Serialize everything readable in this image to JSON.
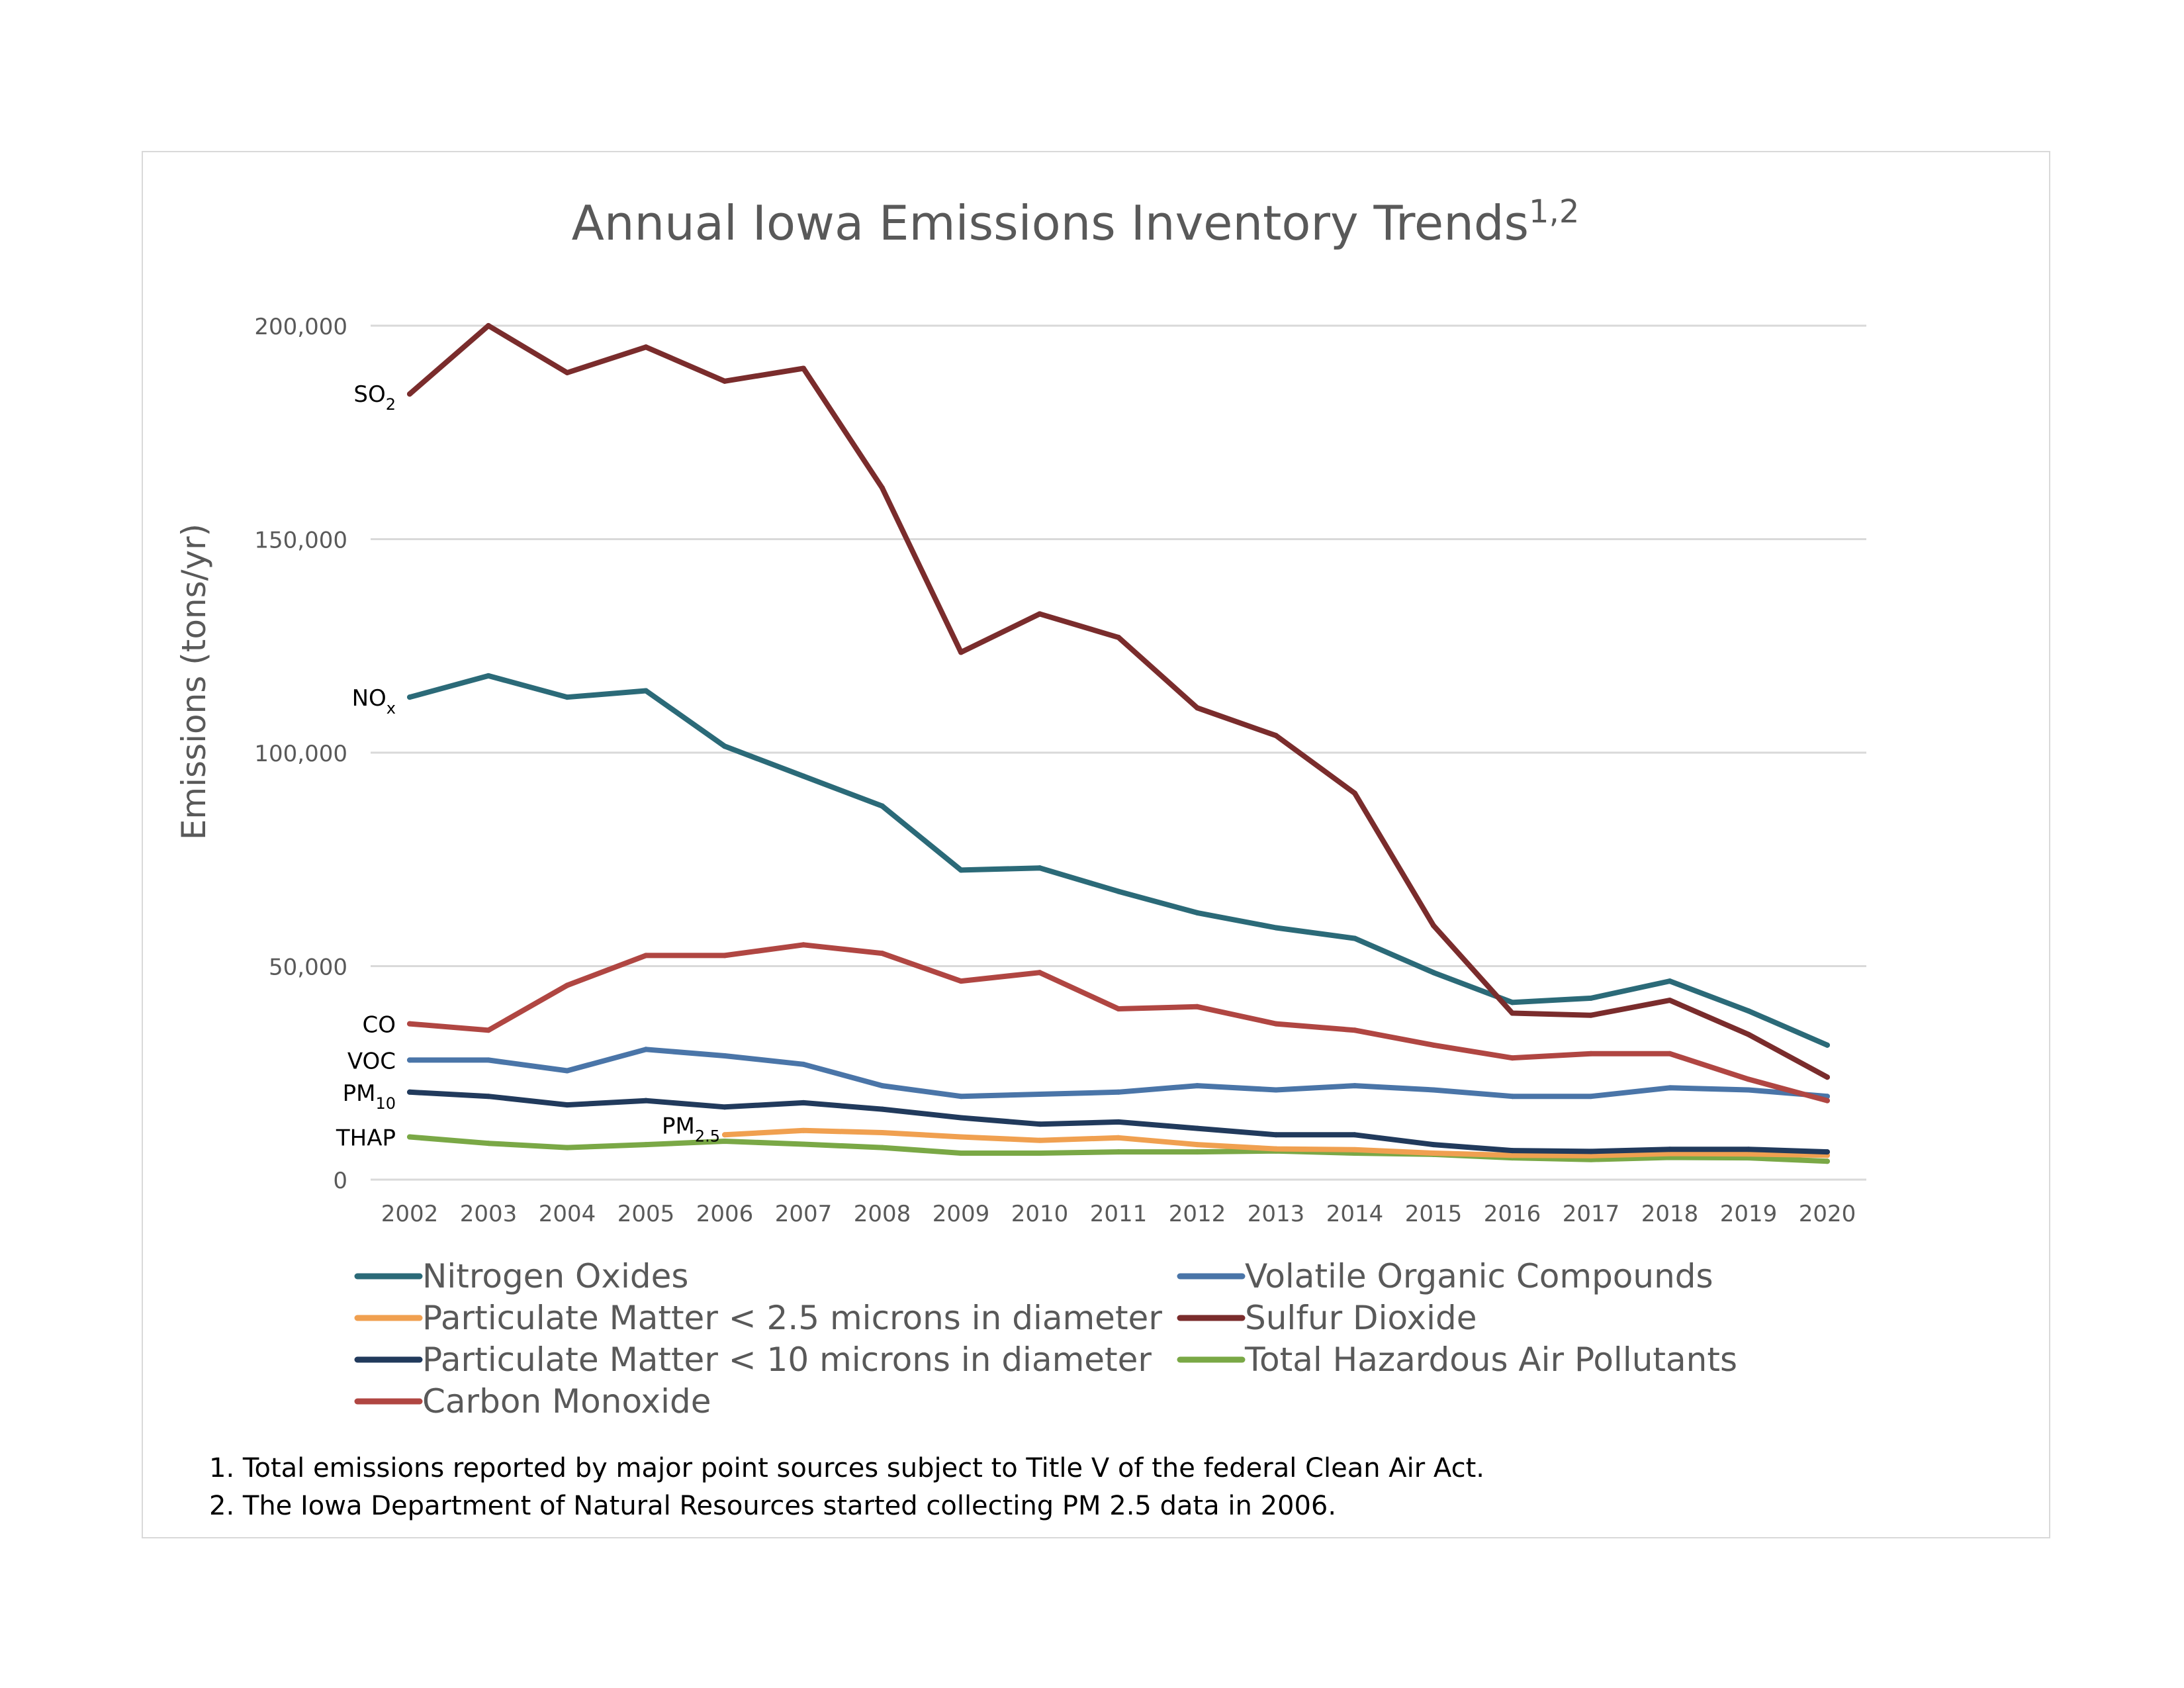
{
  "chart_data": {
    "type": "line",
    "title": "Annual Iowa Emissions Inventory Trends",
    "title_superscript": "1,2",
    "ylabel": "Emissions (tons/yr)",
    "xlabel": "",
    "ylim": [
      0,
      200000
    ],
    "yticks": [
      0,
      50000,
      100000,
      150000,
      200000
    ],
    "ytick_labels": [
      "0",
      "50,000",
      "100,000",
      "150,000",
      "200,000"
    ],
    "grid": true,
    "legend_position": "bottom",
    "categories": [
      "2002",
      "2003",
      "2004",
      "2005",
      "2006",
      "2007",
      "2008",
      "2009",
      "2010",
      "2011",
      "2012",
      "2013",
      "2014",
      "2015",
      "2016",
      "2017",
      "2018",
      "2019",
      "2020"
    ],
    "series": [
      {
        "name": "Nitrogen Oxides",
        "color": "#2b6a78",
        "label": "NO",
        "label_sub": "x",
        "values": [
          113000,
          118000,
          113000,
          114500,
          101500,
          94500,
          87500,
          72500,
          73000,
          67500,
          62500,
          59000,
          56500,
          48500,
          41500,
          42500,
          46500,
          39500,
          31500
        ]
      },
      {
        "name": "Volatile Organic Compounds",
        "color": "#4a75a8",
        "label": "VOC",
        "label_sub": "",
        "values": [
          28000,
          28000,
          25500,
          30500,
          29000,
          27000,
          22000,
          19500,
          20000,
          20500,
          22000,
          21000,
          22000,
          21000,
          19500,
          19500,
          21500,
          21000,
          19500
        ]
      },
      {
        "name": "Particulate Matter < 2.5 microns in diameter",
        "color": "#f0a050",
        "label": "PM",
        "label_sub": "2.5",
        "values": [
          null,
          null,
          null,
          null,
          10500,
          11500,
          11000,
          10000,
          9200,
          9800,
          8200,
          7200,
          7000,
          6200,
          5700,
          5600,
          6100,
          6000,
          5700
        ]
      },
      {
        "name": "Sulfur Dioxide",
        "color": "#7a2c2c",
        "label": "SO",
        "label_sub": "2",
        "values": [
          184000,
          200000,
          189000,
          195000,
          187000,
          190000,
          162000,
          123500,
          132500,
          127000,
          110500,
          104000,
          90500,
          59500,
          39000,
          38500,
          42000,
          34000,
          24000
        ]
      },
      {
        "name": "Particulate Matter < 10 microns in diameter",
        "color": "#213a5c",
        "label": "PM",
        "label_sub": "10",
        "values": [
          20500,
          19500,
          17500,
          18500,
          17000,
          18000,
          16500,
          14500,
          13000,
          13500,
          12000,
          10500,
          10500,
          8200,
          6800,
          6600,
          7100,
          7100,
          6500
        ]
      },
      {
        "name": "Total Hazardous Air Pollutants",
        "color": "#7aa846",
        "label": "THAP",
        "label_sub": "",
        "values": [
          10000,
          8500,
          7500,
          8200,
          9000,
          8300,
          7500,
          6200,
          6200,
          6500,
          6500,
          6700,
          6200,
          5900,
          5100,
          4700,
          5200,
          5100,
          4300
        ]
      },
      {
        "name": "Carbon Monoxide",
        "color": "#b04642",
        "label": "CO",
        "label_sub": "",
        "values": [
          36500,
          35000,
          45500,
          52500,
          52500,
          55000,
          53000,
          46500,
          48500,
          40000,
          40500,
          36500,
          35000,
          31500,
          28500,
          29500,
          29500,
          23500,
          18500
        ]
      }
    ]
  },
  "footnotes": [
    "1. Total emissions reported by major point sources subject to Title V of the federal Clean Air Act.",
    "2. The Iowa Department of Natural Resources started collecting PM 2.5 data in 2006."
  ]
}
